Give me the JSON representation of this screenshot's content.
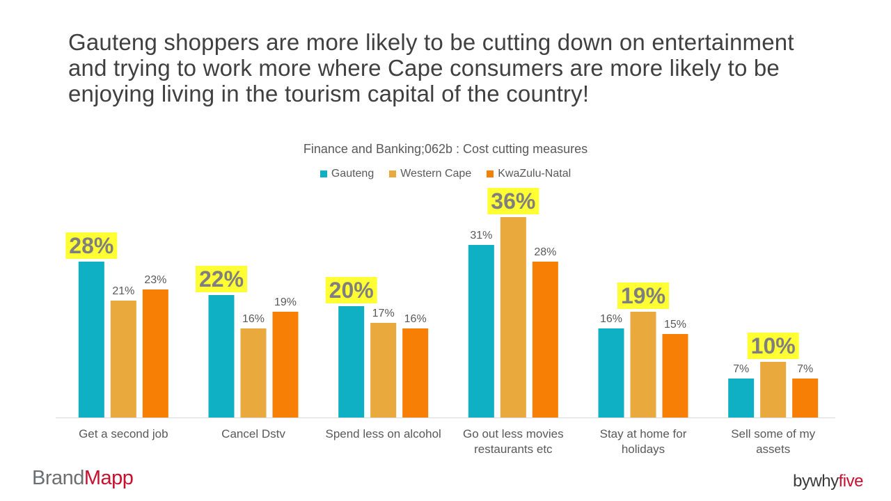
{
  "headline": "Gauteng shoppers are more likely to be cutting down on entertainment and trying to work more where Cape consumers are more likely to be enjoying living in the tourism capital of the country!",
  "colors": {
    "gauteng": "#0fb0c4",
    "western_cape": "#e9a93c",
    "kwazulu_natal": "#f77f06",
    "highlight": "#ffff33",
    "brand_red": "#c8102e"
  },
  "chart_data": {
    "type": "bar",
    "title": "Finance and Banking;062b : Cost cutting measures",
    "categories": [
      [
        "Get a second job"
      ],
      [
        "Cancel Dstv"
      ],
      [
        "Spend less on alcohol"
      ],
      [
        "Go out less  movies",
        "restaurants etc"
      ],
      [
        "Stay at home for",
        "holidays"
      ],
      [
        "Sell some of my",
        "assets"
      ]
    ],
    "series": [
      {
        "name": "Gauteng",
        "values": [
          28,
          22,
          20,
          31,
          16,
          7
        ]
      },
      {
        "name": "Western Cape",
        "values": [
          21,
          16,
          17,
          36,
          19,
          10
        ]
      },
      {
        "name": "KwaZulu-Natal",
        "values": [
          23,
          19,
          16,
          28,
          15,
          7
        ]
      }
    ],
    "value_suffix": "%",
    "highlighted": [
      {
        "category": 0,
        "series": 0
      },
      {
        "category": 1,
        "series": 0
      },
      {
        "category": 2,
        "series": 0
      },
      {
        "category": 3,
        "series": 1
      },
      {
        "category": 4,
        "series": 1
      },
      {
        "category": 5,
        "series": 1
      }
    ],
    "legend_position": "top",
    "grid": false,
    "ylim": [
      0,
      36
    ]
  },
  "branding": {
    "left_prefix": "Brand",
    "left_accent": "Mapp",
    "right_prefix": "bywhy",
    "right_accent": "five"
  }
}
